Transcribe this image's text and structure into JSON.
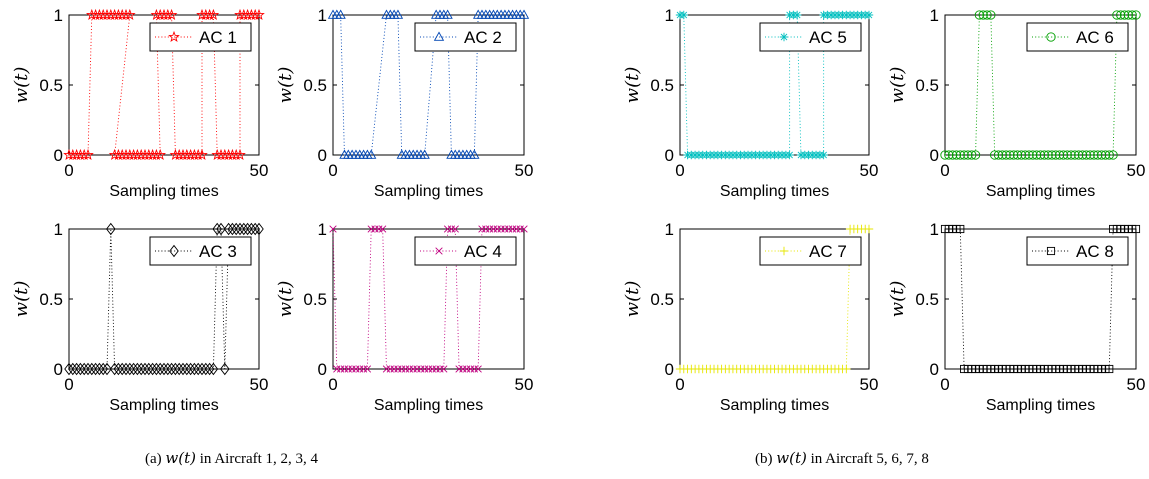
{
  "captions": {
    "left": {
      "prefix": "(a) ",
      "math": "w(t)",
      "suffix": " in Aircraft 1, 2, 3, 4"
    },
    "right": {
      "prefix": "(b) ",
      "math": "w(t)",
      "suffix": " in Aircraft 5, 6, 7, 8"
    }
  },
  "chart_data": [
    {
      "type": "line",
      "title": "",
      "xlabel": "Sampling times",
      "ylabel": "w(t)",
      "xlim": [
        0,
        50
      ],
      "ylim": [
        0,
        1
      ],
      "xticks": [
        "0",
        "50"
      ],
      "yticks": [
        "0",
        "0.5",
        "1"
      ],
      "grid": false,
      "legend_position": "top-right",
      "line_style": "dotted",
      "series": [
        {
          "name": "AC 1",
          "marker": "star",
          "color": "#ff0000",
          "runs": [
            [
              0,
              5,
              0
            ],
            [
              6,
              16,
              1
            ],
            [
              12,
              24,
              0
            ],
            [
              23,
              27,
              1
            ],
            [
              28,
              35,
              0
            ],
            [
              35,
              38,
              1
            ],
            [
              39,
              45,
              0
            ],
            [
              45,
              50,
              1
            ]
          ]
        }
      ]
    },
    {
      "type": "line",
      "title": "",
      "xlabel": "Sampling times",
      "ylabel": "w(t)",
      "xlim": [
        0,
        50
      ],
      "ylim": [
        0,
        1
      ],
      "xticks": [
        "0",
        "50"
      ],
      "yticks": [
        "0",
        "0.5",
        "1"
      ],
      "grid": false,
      "legend_position": "top-right",
      "line_style": "dotted",
      "series": [
        {
          "name": "AC 2",
          "marker": "triangle",
          "color": "#0046b4",
          "runs": [
            [
              0,
              2,
              1
            ],
            [
              3,
              10,
              0
            ],
            [
              14,
              17,
              1
            ],
            [
              18,
              24,
              0
            ],
            [
              27,
              30,
              1
            ],
            [
              31,
              37,
              0
            ],
            [
              38,
              50,
              1
            ]
          ]
        }
      ]
    },
    {
      "type": "line",
      "title": "",
      "xlabel": "Sampling times",
      "ylabel": "w(t)",
      "xlim": [
        0,
        50
      ],
      "ylim": [
        0,
        1
      ],
      "xticks": [
        "0",
        "50"
      ],
      "yticks": [
        "0",
        "0.5",
        "1"
      ],
      "grid": false,
      "legend_position": "top-right",
      "line_style": "dotted",
      "series": [
        {
          "name": "AC 3",
          "marker": "diamond",
          "color": "#000000",
          "runs": [
            [
              0,
              10,
              0
            ],
            [
              11,
              11,
              1
            ],
            [
              12,
              38,
              0
            ],
            [
              39,
              40,
              1
            ],
            [
              41,
              41,
              0
            ],
            [
              42,
              50,
              1
            ]
          ]
        }
      ]
    },
    {
      "type": "line",
      "title": "",
      "xlabel": "Sampling times",
      "ylabel": "w(t)",
      "xlim": [
        0,
        50
      ],
      "ylim": [
        0,
        1
      ],
      "xticks": [
        "0",
        "50"
      ],
      "yticks": [
        "0",
        "0.5",
        "1"
      ],
      "grid": false,
      "legend_position": "top-right",
      "line_style": "dotted",
      "series": [
        {
          "name": "AC 4",
          "marker": "x",
          "color": "#c0007f",
          "runs": [
            [
              0,
              0,
              1
            ],
            [
              1,
              9,
              0
            ],
            [
              10,
              13,
              1
            ],
            [
              14,
              29,
              0
            ],
            [
              30,
              32,
              1
            ],
            [
              33,
              38,
              0
            ],
            [
              39,
              50,
              1
            ]
          ]
        }
      ]
    },
    {
      "type": "line",
      "title": "",
      "xlabel": "Sampling times",
      "ylabel": "w(t)",
      "xlim": [
        0,
        50
      ],
      "ylim": [
        0,
        1
      ],
      "xticks": [
        "0",
        "50"
      ],
      "yticks": [
        "0",
        "0.5",
        "1"
      ],
      "grid": false,
      "legend_position": "top-right",
      "line_style": "dotted",
      "series": [
        {
          "name": "AC 5",
          "marker": "asterisk",
          "color": "#00bfbf",
          "runs": [
            [
              0,
              1,
              1
            ],
            [
              2,
              29,
              0
            ],
            [
              29,
              31,
              1
            ],
            [
              32,
              38,
              0
            ],
            [
              38,
              50,
              1
            ]
          ]
        }
      ]
    },
    {
      "type": "line",
      "title": "",
      "xlabel": "Sampling times",
      "ylabel": "w(t)",
      "xlim": [
        0,
        50
      ],
      "ylim": [
        0,
        1
      ],
      "xticks": [
        "0",
        "50"
      ],
      "yticks": [
        "0",
        "0.5",
        "1"
      ],
      "grid": false,
      "legend_position": "top-right",
      "line_style": "dotted",
      "series": [
        {
          "name": "AC 6",
          "marker": "circle",
          "color": "#00a000",
          "runs": [
            [
              0,
              8,
              0
            ],
            [
              9,
              12,
              1
            ],
            [
              13,
              44,
              0
            ],
            [
              45,
              50,
              1
            ]
          ]
        }
      ]
    },
    {
      "type": "line",
      "title": "",
      "xlabel": "Sampling times",
      "ylabel": "w(t)",
      "xlim": [
        0,
        50
      ],
      "ylim": [
        0,
        1
      ],
      "xticks": [
        "0",
        "50"
      ],
      "yticks": [
        "0",
        "0.5",
        "1"
      ],
      "grid": false,
      "legend_position": "top-right",
      "line_style": "dotted",
      "series": [
        {
          "name": "AC 7",
          "marker": "plus",
          "color": "#e6e600",
          "runs": [
            [
              0,
              44,
              0
            ],
            [
              45,
              50,
              1
            ]
          ]
        }
      ]
    },
    {
      "type": "line",
      "title": "",
      "xlabel": "Sampling times",
      "ylabel": "w(t)",
      "xlim": [
        0,
        50
      ],
      "ylim": [
        0,
        1
      ],
      "xticks": [
        "0",
        "50"
      ],
      "yticks": [
        "0",
        "0.5",
        "1"
      ],
      "grid": false,
      "legend_position": "top-right",
      "line_style": "dotted",
      "series": [
        {
          "name": "AC 8",
          "marker": "square",
          "color": "#000000",
          "runs": [
            [
              0,
              4,
              1
            ],
            [
              5,
              43,
              0
            ],
            [
              44,
              50,
              1
            ]
          ]
        }
      ]
    }
  ]
}
